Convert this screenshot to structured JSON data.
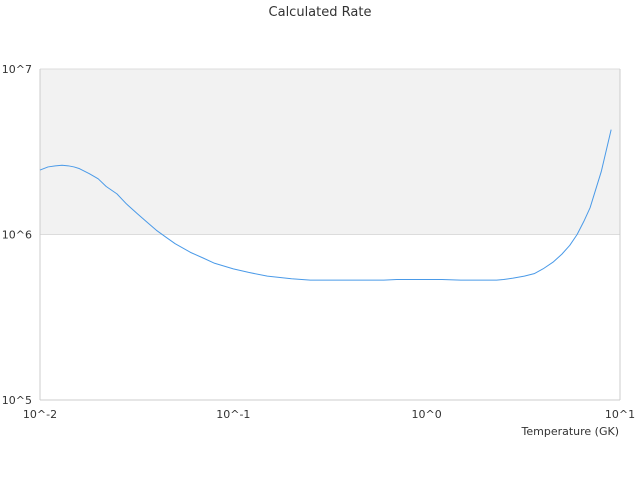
{
  "chart_data": {
    "type": "line",
    "title": "Calculated Rate",
    "xlabel": "Temperature (GK)",
    "ylabel": "",
    "x_scale": "log",
    "y_scale": "log",
    "xlim": [
      0.01,
      10
    ],
    "ylim": [
      100000,
      10000000
    ],
    "x_tick_values": [
      0.01,
      0.1,
      1,
      10
    ],
    "x_tick_labels": [
      "10^-2",
      "10^-1",
      "10^0",
      "10^1"
    ],
    "y_tick_values": [
      100000,
      1000000,
      10000000
    ],
    "y_tick_labels": [
      "10^5",
      "10^6",
      "10^7"
    ],
    "grid": true,
    "band": {
      "y_from": 1000000,
      "y_to": 10000000,
      "color": "#f2f2f2"
    },
    "colors": {
      "line": "#4a9ae8",
      "grid": "#dcdcdc",
      "axis": "#cccccc",
      "band": "#f2f2f2"
    },
    "series": [
      {
        "x": [
          0.01,
          0.011,
          0.012,
          0.013,
          0.014,
          0.015,
          0.016,
          0.018,
          0.02,
          0.022,
          0.025,
          0.028,
          0.032,
          0.036,
          0.04,
          0.045,
          0.05,
          0.06,
          0.07,
          0.08,
          0.1,
          0.12,
          0.15,
          0.2,
          0.25,
          0.3,
          0.4,
          0.5,
          0.6,
          0.7,
          0.8,
          1.0,
          1.2,
          1.5,
          2.0,
          2.3,
          2.5,
          2.8,
          3.2,
          3.6,
          4.0,
          4.5,
          5.0,
          5.5,
          6.0,
          6.5,
          7.0,
          8.0,
          9.0
        ],
        "y": [
          2450000,
          2560000,
          2600000,
          2620000,
          2600000,
          2560000,
          2500000,
          2330000,
          2170000,
          1950000,
          1760000,
          1530000,
          1330000,
          1180000,
          1060000,
          960000,
          880000,
          780000,
          720000,
          670000,
          620000,
          590000,
          560000,
          540000,
          530000,
          530000,
          530000,
          530000,
          530000,
          535000,
          535000,
          535000,
          535000,
          530000,
          530000,
          530000,
          535000,
          545000,
          560000,
          580000,
          620000,
          680000,
          760000,
          860000,
          1000000,
          1200000,
          1450000,
          2400000,
          4300000
        ]
      }
    ]
  }
}
